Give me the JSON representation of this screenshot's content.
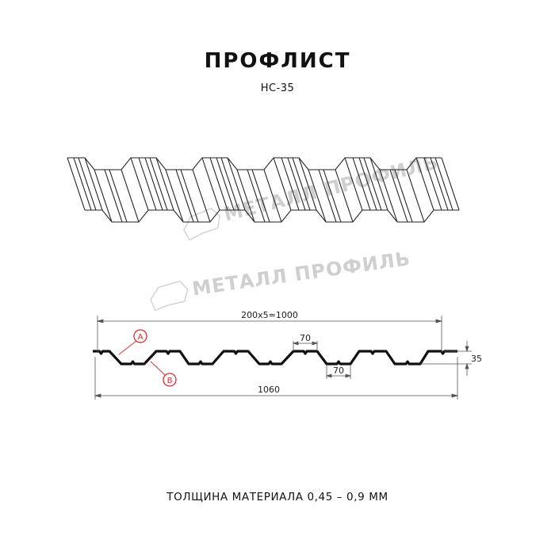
{
  "header": {
    "title": "ПРОФЛИСТ",
    "subtitle": "НС-35"
  },
  "watermark": {
    "text": "МЕТАЛЛ ПРОФИЛЬ",
    "color": "#cfcfcf"
  },
  "section": {
    "dim_pitch": "200x5=1000",
    "dim_top_ridge": "70",
    "dim_bottom_trough": "70",
    "dim_height": "35",
    "dim_total_width": "1060",
    "callout_a": "A",
    "callout_b": "B",
    "callout_color": "#e0262b"
  },
  "footer": {
    "thickness": "ТОЛЩИНА МАТЕРИАЛА 0,45 – 0,9 ММ"
  }
}
